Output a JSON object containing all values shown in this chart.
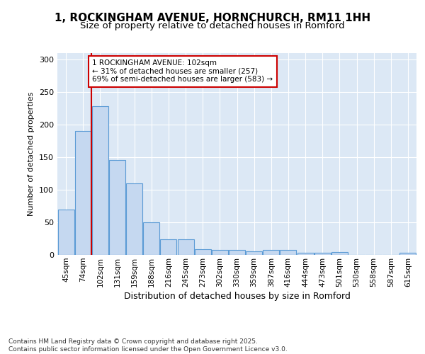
{
  "title1": "1, ROCKINGHAM AVENUE, HORNCHURCH, RM11 1HH",
  "title2": "Size of property relative to detached houses in Romford",
  "xlabel": "Distribution of detached houses by size in Romford",
  "ylabel": "Number of detached properties",
  "categories": [
    "45sqm",
    "74sqm",
    "102sqm",
    "131sqm",
    "159sqm",
    "188sqm",
    "216sqm",
    "245sqm",
    "273sqm",
    "302sqm",
    "330sqm",
    "359sqm",
    "387sqm",
    "416sqm",
    "444sqm",
    "473sqm",
    "501sqm",
    "530sqm",
    "558sqm",
    "587sqm",
    "615sqm"
  ],
  "values": [
    70,
    190,
    228,
    146,
    110,
    50,
    24,
    24,
    9,
    8,
    8,
    5,
    8,
    8,
    3,
    3,
    4,
    0,
    0,
    0,
    3
  ],
  "bar_color": "#c5d8f0",
  "bar_edge_color": "#5b9bd5",
  "vline_color": "#cc0000",
  "vline_x": 1.5,
  "annotation_text": "1 ROCKINGHAM AVENUE: 102sqm\n← 31% of detached houses are smaller (257)\n69% of semi-detached houses are larger (583) →",
  "annotation_box_facecolor": "#ffffff",
  "annotation_box_edgecolor": "#cc0000",
  "ylim": [
    0,
    310
  ],
  "yticks": [
    0,
    50,
    100,
    150,
    200,
    250,
    300
  ],
  "bg_color": "#dce8f5",
  "grid_color": "#ffffff",
  "fig_facecolor": "#ffffff",
  "footer": "Contains HM Land Registry data © Crown copyright and database right 2025.\nContains public sector information licensed under the Open Government Licence v3.0."
}
